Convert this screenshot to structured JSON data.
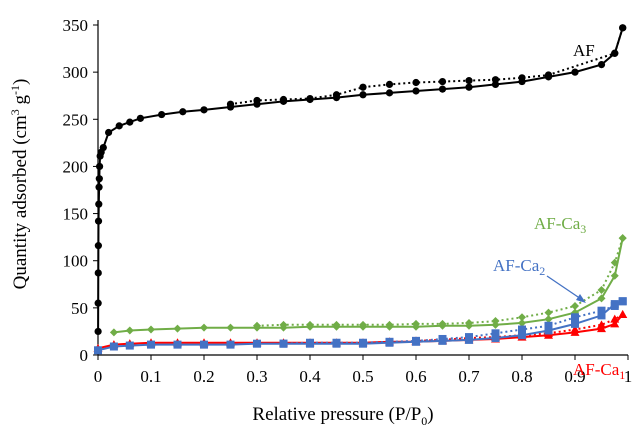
{
  "chart_data": {
    "type": "line",
    "xlabel": "Relative pressure (P/P",
    "xlabel_sub": "0",
    "xlabel_end": ")",
    "ylabel": "Quantity adsorbed (cm",
    "ylabel_sup1": "3",
    "ylabel_mid": " g",
    "ylabel_sup2": "-1",
    "ylabel_end": ")",
    "xlim": [
      0,
      1
    ],
    "ylim": [
      0,
      350
    ],
    "xticks": [
      0,
      0.1,
      0.2,
      0.3,
      0.4,
      0.5,
      0.6,
      0.7,
      0.8,
      0.9,
      1
    ],
    "xtick_labels": [
      "0",
      "0.1",
      "0.2",
      "0.3",
      "0.4",
      "0.5",
      "0.6",
      "0.7",
      "0.8",
      "0.9",
      "1"
    ],
    "yticks": [
      0,
      50,
      100,
      150,
      200,
      250,
      300,
      350
    ],
    "ytick_labels": [
      "0",
      "50",
      "100",
      "150",
      "200",
      "250",
      "300",
      "350"
    ],
    "grid": false,
    "series": [
      {
        "name": "AF",
        "label_main": "AF",
        "label_sub": "",
        "color": "#000000",
        "marker": "circle",
        "adsorption": [
          [
            0.0002,
            25
          ],
          [
            0.0003,
            55
          ],
          [
            0.0005,
            87
          ],
          [
            0.0007,
            116
          ],
          [
            0.001,
            142
          ],
          [
            0.0015,
            160
          ],
          [
            0.002,
            178
          ],
          [
            0.0025,
            187
          ],
          [
            0.003,
            200
          ],
          [
            0.004,
            211
          ],
          [
            0.006,
            215
          ],
          [
            0.01,
            220
          ],
          [
            0.02,
            236
          ],
          [
            0.04,
            243
          ],
          [
            0.06,
            247
          ],
          [
            0.08,
            251
          ],
          [
            0.12,
            255
          ],
          [
            0.16,
            258
          ],
          [
            0.2,
            260
          ],
          [
            0.25,
            263
          ],
          [
            0.3,
            266
          ],
          [
            0.35,
            269
          ],
          [
            0.4,
            271
          ],
          [
            0.45,
            273
          ],
          [
            0.5,
            276
          ],
          [
            0.55,
            278
          ],
          [
            0.6,
            280
          ],
          [
            0.65,
            282
          ],
          [
            0.7,
            284
          ],
          [
            0.75,
            287
          ],
          [
            0.8,
            290
          ],
          [
            0.85,
            295
          ],
          [
            0.9,
            300
          ],
          [
            0.95,
            308
          ],
          [
            0.975,
            320
          ],
          [
            0.99,
            347
          ]
        ],
        "desorption": [
          [
            0.99,
            347
          ],
          [
            0.975,
            320
          ],
          [
            0.85,
            297
          ],
          [
            0.8,
            294
          ],
          [
            0.75,
            292
          ],
          [
            0.7,
            291
          ],
          [
            0.65,
            290
          ],
          [
            0.6,
            289
          ],
          [
            0.55,
            287
          ],
          [
            0.5,
            284
          ],
          [
            0.45,
            276
          ],
          [
            0.4,
            272
          ],
          [
            0.35,
            271
          ],
          [
            0.3,
            270
          ],
          [
            0.25,
            266
          ]
        ]
      },
      {
        "name": "AF-Ca3",
        "label_main": "AF-Ca",
        "label_sub": "3",
        "color": "#70ad47",
        "marker": "diamond",
        "adsorption": [
          [
            0.03,
            24
          ],
          [
            0.06,
            26
          ],
          [
            0.1,
            27
          ],
          [
            0.15,
            28
          ],
          [
            0.2,
            29
          ],
          [
            0.25,
            29
          ],
          [
            0.3,
            29
          ],
          [
            0.35,
            29
          ],
          [
            0.4,
            30
          ],
          [
            0.45,
            30
          ],
          [
            0.5,
            30
          ],
          [
            0.55,
            30
          ],
          [
            0.6,
            30
          ],
          [
            0.65,
            31
          ],
          [
            0.7,
            31
          ],
          [
            0.75,
            32
          ],
          [
            0.8,
            34
          ],
          [
            0.85,
            38
          ],
          [
            0.9,
            45
          ],
          [
            0.95,
            60
          ],
          [
            0.975,
            84
          ],
          [
            0.99,
            124
          ]
        ],
        "desorption": [
          [
            0.99,
            124
          ],
          [
            0.975,
            98
          ],
          [
            0.95,
            69
          ],
          [
            0.9,
            52
          ],
          [
            0.85,
            45
          ],
          [
            0.8,
            40
          ],
          [
            0.75,
            36
          ],
          [
            0.7,
            34
          ],
          [
            0.65,
            33
          ],
          [
            0.6,
            33
          ],
          [
            0.55,
            32
          ],
          [
            0.5,
            32
          ],
          [
            0.45,
            32
          ],
          [
            0.4,
            32
          ],
          [
            0.35,
            32
          ],
          [
            0.3,
            31
          ]
        ]
      },
      {
        "name": "AF-Ca2",
        "label_main": "AF-Ca",
        "label_sub": "2",
        "color": "#4472c4",
        "marker": "square",
        "adsorption": [
          [
            0.0,
            5
          ],
          [
            0.03,
            9
          ],
          [
            0.06,
            10
          ],
          [
            0.1,
            11
          ],
          [
            0.15,
            11
          ],
          [
            0.2,
            11
          ],
          [
            0.25,
            11
          ],
          [
            0.3,
            12
          ],
          [
            0.35,
            12
          ],
          [
            0.4,
            12
          ],
          [
            0.45,
            12
          ],
          [
            0.5,
            12
          ],
          [
            0.55,
            13
          ],
          [
            0.6,
            14
          ],
          [
            0.65,
            15
          ],
          [
            0.7,
            16
          ],
          [
            0.75,
            18
          ],
          [
            0.8,
            21
          ],
          [
            0.85,
            26
          ],
          [
            0.9,
            33
          ],
          [
            0.95,
            42
          ],
          [
            0.975,
            54
          ],
          [
            0.99,
            57
          ]
        ],
        "desorption": [
          [
            0.99,
            57
          ],
          [
            0.975,
            52
          ],
          [
            0.95,
            47
          ],
          [
            0.9,
            40
          ],
          [
            0.85,
            31
          ],
          [
            0.8,
            27
          ],
          [
            0.75,
            23
          ],
          [
            0.7,
            19
          ],
          [
            0.65,
            17
          ],
          [
            0.6,
            15
          ],
          [
            0.55,
            14
          ],
          [
            0.5,
            13
          ],
          [
            0.45,
            13
          ],
          [
            0.4,
            13
          ],
          [
            0.35,
            12
          ]
        ]
      },
      {
        "name": "AF-Ca1",
        "label_main": "AF-Ca",
        "label_sub": "1",
        "color": "#ff0000",
        "marker": "triangle",
        "adsorption": [
          [
            0.0,
            7
          ],
          [
            0.03,
            11
          ],
          [
            0.06,
            12
          ],
          [
            0.1,
            13
          ],
          [
            0.15,
            13
          ],
          [
            0.2,
            13
          ],
          [
            0.25,
            13
          ],
          [
            0.3,
            13
          ],
          [
            0.35,
            13
          ],
          [
            0.4,
            13
          ],
          [
            0.45,
            13
          ],
          [
            0.5,
            13
          ],
          [
            0.55,
            14
          ],
          [
            0.6,
            14
          ],
          [
            0.65,
            15
          ],
          [
            0.7,
            16
          ],
          [
            0.75,
            17
          ],
          [
            0.8,
            19
          ],
          [
            0.85,
            21
          ],
          [
            0.9,
            24
          ],
          [
            0.95,
            28
          ],
          [
            0.975,
            33
          ],
          [
            0.99,
            43
          ]
        ],
        "desorption": [
          [
            0.99,
            43
          ],
          [
            0.975,
            38
          ],
          [
            0.95,
            32
          ],
          [
            0.9,
            27
          ],
          [
            0.85,
            23
          ],
          [
            0.8,
            21
          ],
          [
            0.75,
            19
          ],
          [
            0.7,
            18
          ],
          [
            0.65,
            16
          ],
          [
            0.6,
            15
          ]
        ]
      }
    ],
    "annotations": [
      {
        "series": "AF",
        "text_main": "AF",
        "text_sub": ""
      },
      {
        "series": "AF-Ca3",
        "text_main": "AF-Ca",
        "text_sub": "3"
      },
      {
        "series": "AF-Ca2",
        "text_main": "AF-Ca",
        "text_sub": "2",
        "arrow": true
      },
      {
        "series": "AF-Ca1",
        "text_main": "AF-Ca",
        "text_sub": "1"
      }
    ]
  }
}
